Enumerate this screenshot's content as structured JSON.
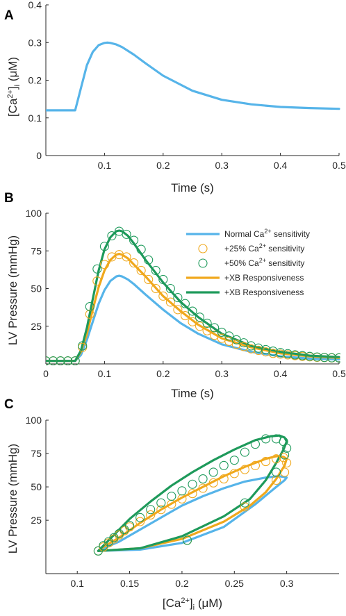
{
  "colors": {
    "normal": "#56B4E9",
    "plus25": "#F0A81C",
    "plus50": "#1E9A5B",
    "axis": "#262626"
  },
  "panels": {
    "A": {
      "letter": "A",
      "xlabel": "Time (s)",
      "ylabel_main": "[Ca",
      "ylabel_sup": "2+",
      "ylabel_close": "]",
      "ylabel_sub": "i",
      "ylabel_unit": " (μM)"
    },
    "B": {
      "letter": "B",
      "xlabel": "Time (s)",
      "ylabel": "LV Pressure (mmHg)"
    },
    "C": {
      "letter": "C",
      "xlabel_main": "[Ca",
      "xlabel_sup": "2+",
      "xlabel_close": "]",
      "xlabel_sub": "i",
      "xlabel_unit": " (μM)",
      "ylabel": "LV Pressure (mmHg)"
    }
  },
  "legend": [
    {
      "pre": "Normal Ca",
      "sup": "2+",
      "post": " sensitivity",
      "style": "line",
      "color": "normal"
    },
    {
      "pre": "+25% Ca",
      "sup": "2+",
      "post": " sensitivity",
      "style": "circle",
      "color": "plus25"
    },
    {
      "pre": "+50% Ca",
      "sup": "2+",
      "post": " sensitivity",
      "style": "circle",
      "color": "plus50"
    },
    {
      "pre": "+XB Responsiveness",
      "sup": "",
      "post": "",
      "style": "line",
      "color": "plus25"
    },
    {
      "pre": "+XB Responsiveness",
      "sup": "",
      "post": "",
      "style": "line",
      "color": "plus50"
    }
  ],
  "chart_data": [
    {
      "panel": "A",
      "type": "line",
      "xlim": [
        0,
        0.5
      ],
      "ylim": [
        0,
        0.4
      ],
      "xticks": [
        0.1,
        0.2,
        0.3,
        0.4,
        0.5
      ],
      "xtick_labels": [
        "0.1",
        "0.2",
        "0.3",
        "0.4",
        "0.5"
      ],
      "yticks": [
        0,
        0.1,
        0.2,
        0.3,
        0.4
      ],
      "ytick_labels": [
        "0",
        "0.1",
        "0.2",
        "0.3",
        "0.4"
      ],
      "series": [
        {
          "color": "normal",
          "x": [
            0,
            0.05,
            0.06,
            0.07,
            0.08,
            0.09,
            0.1,
            0.105,
            0.11,
            0.12,
            0.13,
            0.15,
            0.17,
            0.2,
            0.25,
            0.3,
            0.35,
            0.4,
            0.45,
            0.5
          ],
          "y": [
            0.12,
            0.12,
            0.18,
            0.24,
            0.275,
            0.293,
            0.299,
            0.3,
            0.299,
            0.295,
            0.288,
            0.268,
            0.245,
            0.212,
            0.172,
            0.148,
            0.136,
            0.129,
            0.126,
            0.124
          ]
        }
      ]
    },
    {
      "panel": "B",
      "type": "line",
      "xlim": [
        0,
        0.5
      ],
      "ylim": [
        0,
        100
      ],
      "xticks": [
        0,
        0.1,
        0.2,
        0.3,
        0.4,
        0.5
      ],
      "xtick_labels": [
        "0",
        "0.1",
        "0.2",
        "0.3",
        "0.4",
        "0.5"
      ],
      "yticks": [
        25,
        50,
        75,
        100
      ],
      "ytick_labels": [
        "25",
        "50",
        "75",
        "100"
      ],
      "series": [
        {
          "style": "line",
          "color": "normal",
          "x": [
            0,
            0.05,
            0.06,
            0.07,
            0.08,
            0.09,
            0.1,
            0.11,
            0.12,
            0.125,
            0.13,
            0.14,
            0.15,
            0.17,
            0.2,
            0.23,
            0.26,
            0.3,
            0.35,
            0.4,
            0.45,
            0.5
          ],
          "y": [
            2,
            2,
            6,
            16,
            28,
            40,
            49,
            55,
            58,
            58.5,
            58,
            56,
            53,
            46,
            36,
            27,
            20,
            13,
            8,
            5,
            3.5,
            3
          ]
        },
        {
          "style": "line",
          "color": "plus25",
          "x": [
            0,
            0.05,
            0.06,
            0.07,
            0.08,
            0.09,
            0.1,
            0.11,
            0.12,
            0.125,
            0.13,
            0.14,
            0.15,
            0.17,
            0.2,
            0.23,
            0.26,
            0.3,
            0.35,
            0.4,
            0.45,
            0.5
          ],
          "y": [
            2,
            2,
            8,
            20,
            36,
            51,
            62,
            69,
            72.5,
            73,
            72.5,
            70,
            66,
            58,
            45,
            35,
            26,
            17,
            11,
            7,
            5,
            4
          ]
        },
        {
          "style": "line",
          "color": "plus50",
          "x": [
            0,
            0.05,
            0.06,
            0.07,
            0.08,
            0.09,
            0.1,
            0.11,
            0.12,
            0.125,
            0.13,
            0.14,
            0.15,
            0.17,
            0.2,
            0.23,
            0.26,
            0.3,
            0.35,
            0.4,
            0.45,
            0.5
          ],
          "y": [
            2,
            2,
            9,
            24,
            43,
            62,
            76,
            84,
            88,
            88.5,
            88,
            85,
            80,
            69,
            54,
            41,
            31,
            20,
            12,
            8,
            5.5,
            4.5
          ]
        },
        {
          "style": "circle",
          "color": "plus25",
          "x": [
            0,
            0.0125,
            0.025,
            0.0375,
            0.05,
            0.0625,
            0.075,
            0.0875,
            0.1,
            0.1125,
            0.125,
            0.1375,
            0.15,
            0.1625,
            0.175,
            0.1875,
            0.2,
            0.2125,
            0.225,
            0.2375,
            0.25,
            0.2625,
            0.275,
            0.2875,
            0.3,
            0.3125,
            0.325,
            0.3375,
            0.35,
            0.3625,
            0.375,
            0.3875,
            0.4,
            0.4125,
            0.425,
            0.4375,
            0.45,
            0.4625,
            0.475,
            0.4875,
            0.5
          ],
          "y": [
            2,
            2,
            2,
            2,
            2,
            11,
            33,
            55,
            66,
            71,
            72.5,
            71,
            67,
            62,
            56,
            50,
            45,
            41,
            36,
            32,
            28,
            25,
            22,
            19,
            17,
            15,
            13,
            11.5,
            10,
            9,
            8,
            7,
            6.5,
            6,
            5.5,
            5,
            4.7,
            4.4,
            4.2,
            4,
            4
          ]
        },
        {
          "style": "circle",
          "color": "plus50",
          "x": [
            0,
            0.0125,
            0.025,
            0.0375,
            0.05,
            0.0625,
            0.075,
            0.0875,
            0.1,
            0.1125,
            0.125,
            0.1375,
            0.15,
            0.1625,
            0.175,
            0.1875,
            0.2,
            0.2125,
            0.225,
            0.2375,
            0.25,
            0.2625,
            0.275,
            0.2875,
            0.3,
            0.3125,
            0.325,
            0.3375,
            0.35,
            0.3625,
            0.375,
            0.3875,
            0.4,
            0.4125,
            0.425,
            0.4375,
            0.45,
            0.4625,
            0.475,
            0.4875,
            0.5
          ],
          "y": [
            2,
            2,
            2,
            2,
            2,
            12,
            38,
            63,
            78,
            85,
            88,
            86,
            82,
            76,
            69,
            62,
            56,
            50,
            44,
            40,
            35,
            31,
            27,
            24,
            21,
            18.5,
            16,
            14,
            12,
            10.5,
            9.5,
            8.5,
            7.5,
            6.8,
            6,
            5.5,
            5,
            4.6,
            4.3,
            4.1,
            4
          ]
        }
      ]
    },
    {
      "panel": "C",
      "type": "line",
      "xlim": [
        0.07,
        0.35
      ],
      "ylim": [
        -15,
        100
      ],
      "xticks": [
        0.1,
        0.15,
        0.2,
        0.25,
        0.3
      ],
      "xtick_labels": [
        "0.1",
        "0.15",
        "0.2",
        "0.25",
        "0.3"
      ],
      "yticks": [
        25,
        50,
        75,
        100
      ],
      "ytick_labels": [
        "25",
        "50",
        "75",
        "100"
      ],
      "series": [
        {
          "style": "line",
          "color": "normal",
          "x": [
            0.12,
            0.16,
            0.2,
            0.24,
            0.27,
            0.29,
            0.298,
            0.3,
            0.297,
            0.292,
            0.28,
            0.26,
            0.24,
            0.22,
            0.2,
            0.18,
            0.16,
            0.14,
            0.125,
            0.12
          ],
          "y": [
            2,
            3,
            8,
            20,
            37,
            50,
            55,
            57,
            57.5,
            58,
            57,
            54,
            49,
            43,
            36,
            27,
            18,
            9,
            4,
            2
          ]
        },
        {
          "style": "line",
          "color": "plus25",
          "x": [
            0.12,
            0.16,
            0.2,
            0.24,
            0.265,
            0.28,
            0.29,
            0.298,
            0.3,
            0.297,
            0.29,
            0.28,
            0.26,
            0.24,
            0.22,
            0.2,
            0.18,
            0.16,
            0.14,
            0.125,
            0.12
          ],
          "y": [
            2,
            4,
            11,
            24,
            36,
            46,
            56,
            66,
            71,
            72.5,
            73,
            71,
            65,
            58,
            50,
            42,
            33,
            23,
            12,
            5,
            2
          ]
        },
        {
          "style": "line",
          "color": "plus50",
          "x": [
            0.12,
            0.16,
            0.2,
            0.24,
            0.265,
            0.28,
            0.29,
            0.297,
            0.3,
            0.298,
            0.293,
            0.285,
            0.27,
            0.25,
            0.23,
            0.21,
            0.19,
            0.17,
            0.15,
            0.13,
            0.12
          ],
          "y": [
            2,
            4,
            13,
            28,
            41,
            55,
            68,
            78,
            84,
            87,
            88.5,
            88,
            85,
            78,
            70,
            61,
            51,
            39,
            26,
            10,
            2
          ]
        },
        {
          "style": "circle",
          "color": "plus25",
          "x": [
            0.12,
            0.125,
            0.13,
            0.135,
            0.14,
            0.145,
            0.15,
            0.16,
            0.17,
            0.18,
            0.19,
            0.2,
            0.21,
            0.22,
            0.23,
            0.24,
            0.25,
            0.26,
            0.27,
            0.28,
            0.29,
            0.297,
            0.3,
            0.298,
            0.29,
            0.26,
            0.205
          ],
          "y": [
            2,
            5,
            8,
            11,
            14,
            17,
            20,
            24,
            29,
            33,
            37,
            41,
            45,
            49,
            53,
            56,
            60,
            63,
            66,
            69,
            71,
            72,
            68,
            61,
            55,
            35,
            10
          ]
        },
        {
          "style": "circle",
          "color": "plus50",
          "x": [
            0.12,
            0.125,
            0.13,
            0.135,
            0.14,
            0.145,
            0.15,
            0.16,
            0.17,
            0.18,
            0.19,
            0.2,
            0.21,
            0.22,
            0.23,
            0.24,
            0.25,
            0.26,
            0.27,
            0.28,
            0.29,
            0.297,
            0.3,
            0.298,
            0.29,
            0.26,
            0.205
          ],
          "y": [
            2,
            6,
            9,
            12,
            15,
            18,
            21,
            27,
            33,
            38,
            43,
            47,
            52,
            56,
            61,
            66,
            70,
            76,
            82,
            86,
            86,
            84,
            79,
            74,
            61,
            38,
            10
          ]
        }
      ]
    }
  ]
}
